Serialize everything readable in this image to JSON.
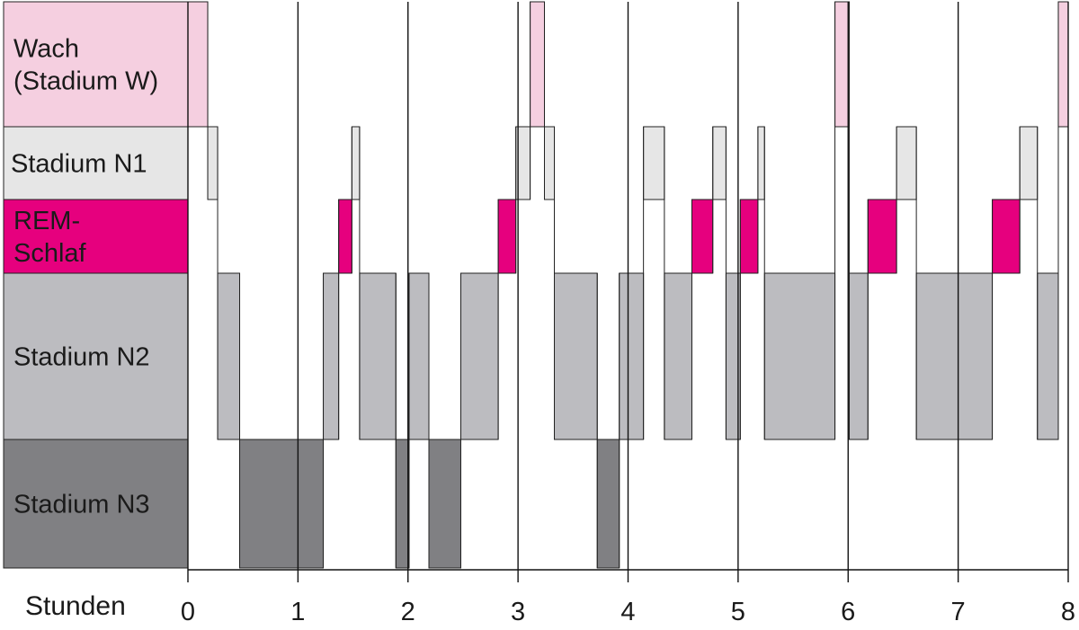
{
  "chart_data": {
    "type": "hypnogram",
    "xlabel": "Stunden",
    "xlim": [
      0,
      8
    ],
    "x_ticks": [
      "0",
      "1",
      "2",
      "3",
      "4",
      "5",
      "6",
      "7",
      "8"
    ],
    "stages": [
      {
        "id": "W",
        "label": [
          "Wach",
          "(Stadium W)"
        ],
        "color": "#f5cfe0"
      },
      {
        "id": "N1",
        "label": [
          "Stadium N1"
        ],
        "color": "#e6e6e6"
      },
      {
        "id": "REM",
        "label": [
          "REM-",
          "Schlaf"
        ],
        "color": "#e6007e"
      },
      {
        "id": "N2",
        "label": [
          "Stadium N2"
        ],
        "color": "#bcbcc0"
      },
      {
        "id": "N3",
        "label": [
          "Stadium N3"
        ],
        "color": "#808083"
      }
    ],
    "segments": [
      {
        "start": 0.0,
        "end": 0.18,
        "stage": "W"
      },
      {
        "start": 0.18,
        "end": 0.27,
        "stage": "N1"
      },
      {
        "start": 0.27,
        "end": 0.47,
        "stage": "N2"
      },
      {
        "start": 0.47,
        "end": 1.23,
        "stage": "N3"
      },
      {
        "start": 1.23,
        "end": 1.37,
        "stage": "N2"
      },
      {
        "start": 1.37,
        "end": 1.49,
        "stage": "REM"
      },
      {
        "start": 1.49,
        "end": 1.56,
        "stage": "N1"
      },
      {
        "start": 1.56,
        "end": 1.89,
        "stage": "N2"
      },
      {
        "start": 1.89,
        "end": 2.01,
        "stage": "N3"
      },
      {
        "start": 2.01,
        "end": 2.19,
        "stage": "N2"
      },
      {
        "start": 2.19,
        "end": 2.48,
        "stage": "N3"
      },
      {
        "start": 2.48,
        "end": 2.82,
        "stage": "N2"
      },
      {
        "start": 2.82,
        "end": 2.98,
        "stage": "REM"
      },
      {
        "start": 2.98,
        "end": 3.11,
        "stage": "N1"
      },
      {
        "start": 3.11,
        "end": 3.24,
        "stage": "W"
      },
      {
        "start": 3.24,
        "end": 3.33,
        "stage": "N1"
      },
      {
        "start": 3.33,
        "end": 3.72,
        "stage": "N2"
      },
      {
        "start": 3.72,
        "end": 3.92,
        "stage": "N3"
      },
      {
        "start": 3.92,
        "end": 4.14,
        "stage": "N2"
      },
      {
        "start": 4.14,
        "end": 4.33,
        "stage": "N1"
      },
      {
        "start": 4.33,
        "end": 4.58,
        "stage": "N2"
      },
      {
        "start": 4.58,
        "end": 4.77,
        "stage": "REM"
      },
      {
        "start": 4.77,
        "end": 4.89,
        "stage": "N1"
      },
      {
        "start": 4.89,
        "end": 5.02,
        "stage": "N2"
      },
      {
        "start": 5.02,
        "end": 5.18,
        "stage": "REM"
      },
      {
        "start": 5.18,
        "end": 5.24,
        "stage": "N1"
      },
      {
        "start": 5.24,
        "end": 5.88,
        "stage": "N2"
      },
      {
        "start": 5.88,
        "end": 6.01,
        "stage": "W"
      },
      {
        "start": 6.01,
        "end": 6.18,
        "stage": "N2"
      },
      {
        "start": 6.18,
        "end": 6.44,
        "stage": "REM"
      },
      {
        "start": 6.44,
        "end": 6.62,
        "stage": "N1"
      },
      {
        "start": 6.62,
        "end": 7.31,
        "stage": "N2"
      },
      {
        "start": 7.31,
        "end": 7.56,
        "stage": "REM"
      },
      {
        "start": 7.56,
        "end": 7.72,
        "stage": "N1"
      },
      {
        "start": 7.72,
        "end": 7.91,
        "stage": "N2"
      },
      {
        "start": 7.91,
        "end": 8.0,
        "stage": "W"
      }
    ]
  }
}
